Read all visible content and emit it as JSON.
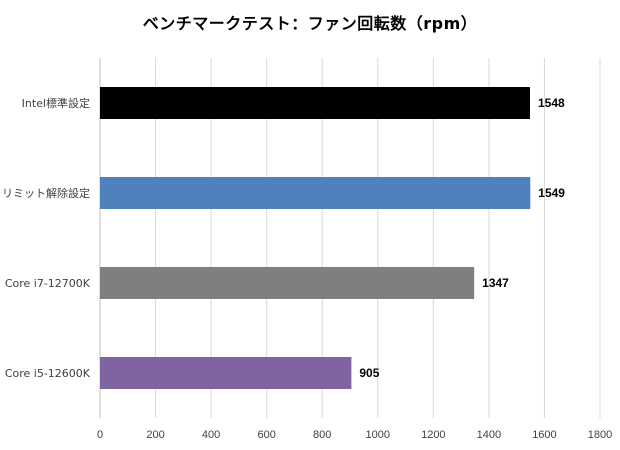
{
  "chart_data": {
    "type": "bar",
    "orientation": "horizontal",
    "title": "ベンチマークテスト：ファン回転数（rpm）",
    "categories": [
      "Intel標準設定",
      "リミット解除設定",
      "Core i7-12700K",
      "Core i5-12600K"
    ],
    "values": [
      1548,
      1549,
      1347,
      905
    ],
    "colors": [
      "#000000",
      "#4f81bd",
      "#7f7f7f",
      "#8064a2"
    ],
    "data_labels": [
      "1548",
      "1549",
      "1347",
      "905"
    ],
    "xlabel": "",
    "ylabel": "",
    "xlim": [
      0,
      1800
    ],
    "xticks": [
      0,
      200,
      400,
      600,
      800,
      1000,
      1200,
      1400,
      1600,
      1800
    ],
    "xtick_labels": [
      "0",
      "200",
      "400",
      "600",
      "800",
      "1000",
      "1200",
      "1400",
      "1600",
      "1800"
    ],
    "grid": true,
    "legend": "none"
  }
}
